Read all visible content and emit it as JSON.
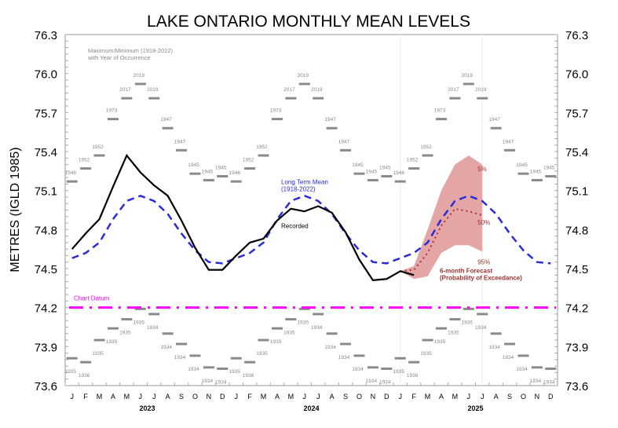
{
  "chart_data": {
    "type": "line",
    "title": "LAKE ONTARIO MONTHLY MEAN LEVELS",
    "ylabel": "METRES (IGLD 1985)",
    "xlabel": "",
    "ylim": [
      73.6,
      76.3
    ],
    "yticks": [
      "76.3",
      "76.0",
      "75.7",
      "75.4",
      "75.1",
      "74.8",
      "74.5",
      "74.2",
      "73.9",
      "73.6"
    ],
    "month_labels": [
      "J",
      "F",
      "M",
      "A",
      "M",
      "J",
      "J",
      "A",
      "S",
      "O",
      "N",
      "D"
    ],
    "years": [
      "2023",
      "2024",
      "2025"
    ],
    "grid": false,
    "extremes_note": [
      "Maximum/Minimum (1918-2022)",
      "with Year of Occurrence"
    ],
    "max": {
      "values": [
        75.17,
        75.27,
        75.37,
        75.65,
        75.81,
        75.92,
        75.81,
        75.58,
        75.41,
        75.23,
        75.18,
        75.21
      ],
      "years": [
        "1946",
        "1952",
        "1952",
        "1973",
        "2017",
        "2019",
        "2019",
        "1947",
        "1947",
        "1945",
        "1945",
        "1945"
      ]
    },
    "min": {
      "values": [
        73.81,
        73.78,
        73.95,
        74.04,
        74.11,
        74.19,
        74.15,
        74.0,
        73.92,
        73.83,
        73.74,
        73.73
      ],
      "years": [
        "1935",
        "1936",
        "1935",
        "1935",
        "1935",
        "1935",
        "1934",
        "1934",
        "1934",
        "1934",
        "1934",
        "1934"
      ]
    },
    "series": [
      {
        "name": "Recorded",
        "color": "#000000",
        "start_month_index": 0,
        "values": [
          74.65,
          74.77,
          74.88,
          75.13,
          75.37,
          75.24,
          75.14,
          75.06,
          74.87,
          74.66,
          74.49,
          74.49,
          74.6,
          74.7,
          74.73,
          74.87,
          74.96,
          74.94,
          74.98,
          74.93,
          74.78,
          74.57,
          74.41,
          74.42,
          74.48,
          74.45
        ]
      },
      {
        "name": "Long Term Mean",
        "name_line2": "(1918-2022)",
        "color": "#2b2bd9",
        "monthly": [
          74.58,
          74.62,
          74.7,
          74.88,
          75.02,
          75.06,
          75.02,
          74.92,
          74.77,
          74.64,
          74.55,
          74.54
        ]
      },
      {
        "name": "50%",
        "color": "#b03030",
        "start_month_index": 24,
        "values": [
          74.48,
          74.49,
          74.62,
          74.83,
          74.96,
          74.94,
          74.91
        ]
      }
    ],
    "forecast_band": {
      "label": "6-month Forecast",
      "label_line2": "(Probability of Exceedance)",
      "upper_label": "5%",
      "lower_label": "95%",
      "start_month_index": 24,
      "upper": [
        74.48,
        74.52,
        74.8,
        75.1,
        75.3,
        75.37,
        75.3
      ],
      "lower": [
        74.48,
        74.42,
        74.44,
        74.62,
        74.68,
        74.68,
        74.63
      ],
      "color": "#e3a5a5"
    },
    "chart_datum": {
      "label": "Chart Datum",
      "value": 74.2,
      "color": "#ff00ff"
    }
  }
}
